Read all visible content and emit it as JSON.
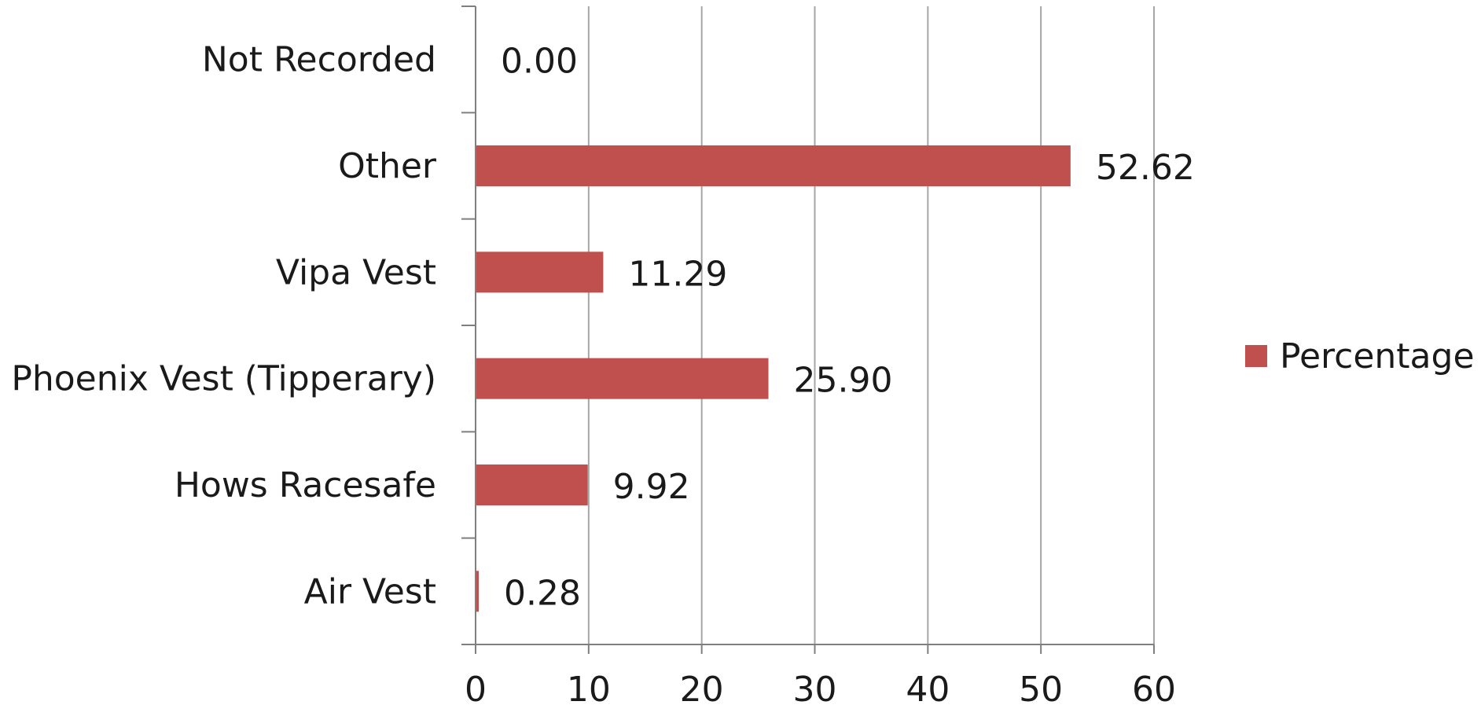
{
  "chart_data": {
    "type": "bar",
    "orientation": "horizontal",
    "categories": [
      "Not Recorded",
      "Other",
      "Vipa Vest",
      "Phoenix Vest (Tipperary)",
      "Hows Racesafe",
      "Air Vest"
    ],
    "series": [
      {
        "name": "Percentage",
        "values": [
          0.0,
          52.62,
          11.29,
          25.9,
          9.92,
          0.28
        ],
        "data_labels": [
          "0.00",
          "52.62",
          "11.29",
          "25.90",
          "9.92",
          "0.28"
        ],
        "color": "#C0504D"
      }
    ],
    "xlim": [
      0,
      60
    ],
    "xticks": [
      0,
      10,
      20,
      30,
      40,
      50,
      60
    ],
    "xtick_labels": [
      "0",
      "10",
      "20",
      "30",
      "40",
      "50",
      "60"
    ],
    "grid": "vertical",
    "legend": {
      "position": "right",
      "entries": [
        "Percentage"
      ]
    },
    "title": "",
    "xlabel": "",
    "ylabel": ""
  },
  "colors": {
    "bar": "#C0504D",
    "grid": "#A6A6A6",
    "axis": "#7F7F7F",
    "text": "#1a1a1a"
  }
}
